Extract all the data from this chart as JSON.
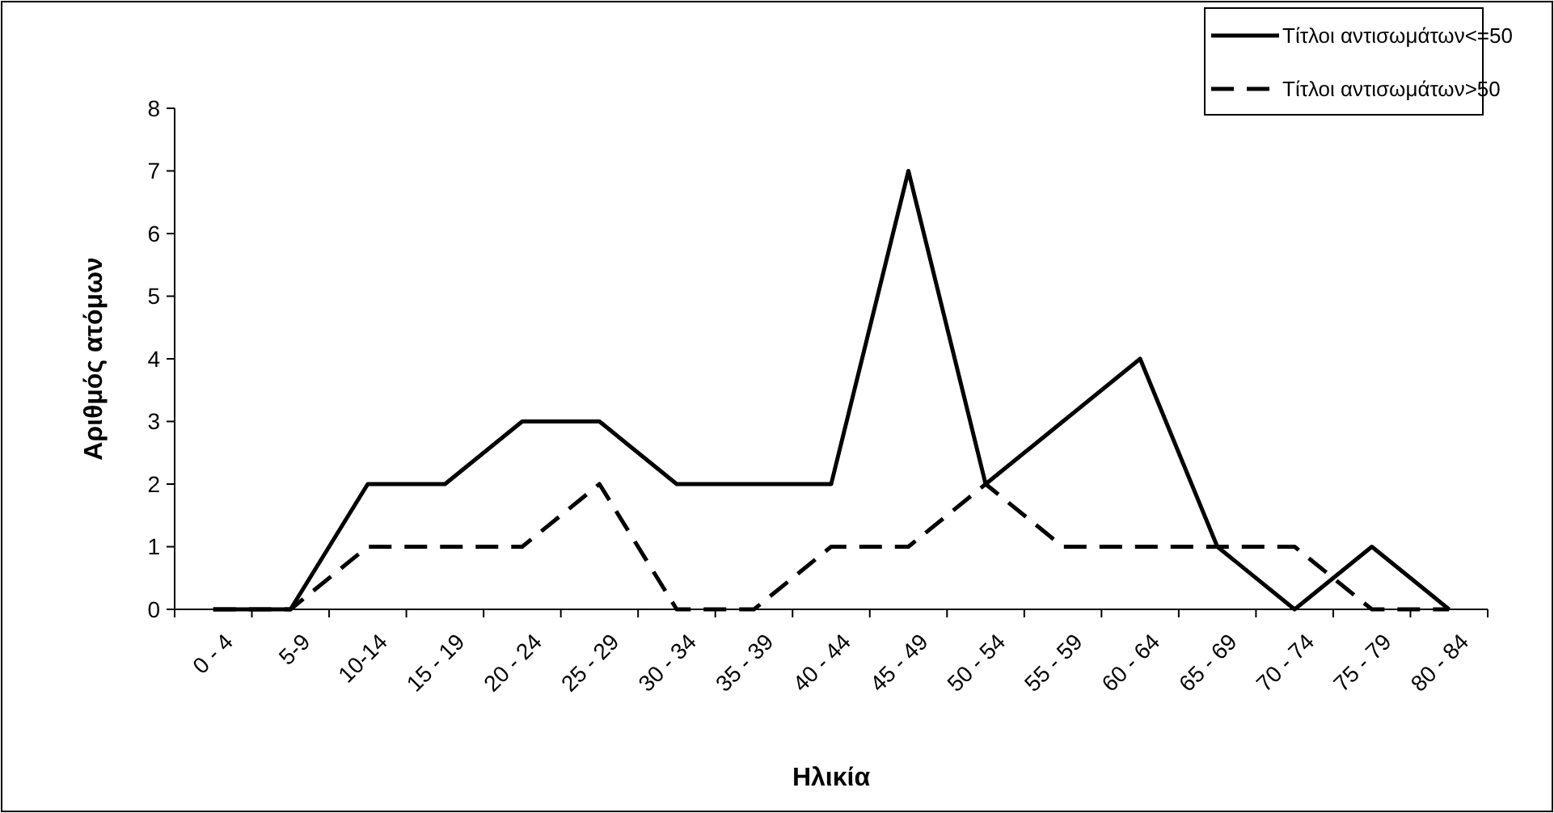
{
  "chart_data": {
    "type": "line",
    "xlabel": "Ηλικία",
    "ylabel": "Αριθμός ατόμων",
    "categories": [
      "0 - 4",
      "5-9",
      "10-14",
      "15 - 19",
      "20 - 24",
      "25 - 29",
      "30 - 34",
      "35 - 39",
      "40 - 44",
      "45 - 49",
      "50 - 54",
      "55 - 59",
      "60 - 64",
      "65 - 69",
      "70 - 74",
      "75 - 79",
      "80 - 84"
    ],
    "series": [
      {
        "name": "Τίτλοι αντισωμάτων<=50",
        "color": "#000000",
        "line_style": "solid",
        "values": [
          0,
          0,
          2,
          2,
          3,
          3,
          2,
          2,
          2,
          7,
          2,
          3,
          4,
          1,
          0,
          1,
          0
        ]
      },
      {
        "name": "Τίτλοι αντισωμάτων>50",
        "color": "#000000",
        "line_style": "dashed",
        "values": [
          0,
          0,
          1,
          1,
          1,
          2,
          0,
          0,
          1,
          1,
          2,
          1,
          1,
          1,
          1,
          0,
          0
        ]
      }
    ],
    "ylim": [
      0,
      8
    ],
    "yticks": [
      0,
      1,
      2,
      3,
      4,
      5,
      6,
      7,
      8
    ],
    "grid": false,
    "legend": "top right",
    "marker": "none"
  }
}
